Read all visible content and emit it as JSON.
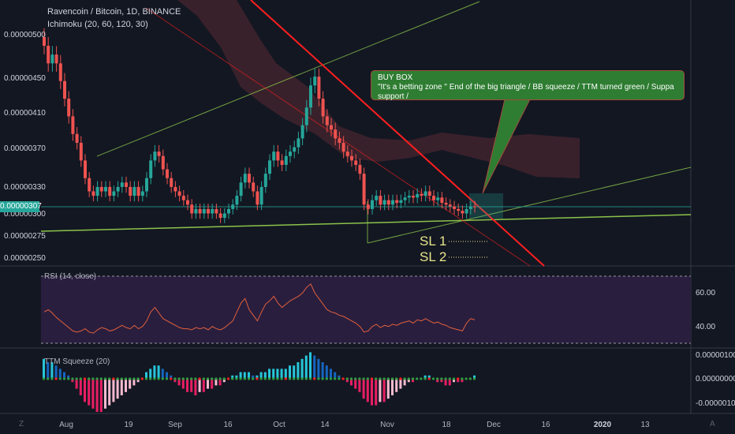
{
  "header": {
    "symbol": "Ravencoin / Bitcoin, 1D, BINANCE",
    "indicator": "Ichimoku (20, 60, 120, 30)"
  },
  "price_axis": [
    "0.00000500",
    "0.00000450",
    "0.00000410",
    "0.00000370",
    "0.00000330",
    "0.00000300",
    "0.00000275",
    "0.00000250"
  ],
  "last_price": "0.00000307",
  "rsi": {
    "label": "RSI (14, close)",
    "ticks": [
      "60.00",
      "40.00"
    ]
  },
  "ttm": {
    "label": "TTM Squeeze (20)",
    "ticks": [
      "0.00000100",
      "0.00000000",
      "-0.00000100"
    ]
  },
  "x_axis": [
    "Aug",
    "19",
    "Sep",
    "16",
    "Oct",
    "14",
    "Nov",
    "18",
    "Dec",
    "16",
    "2020",
    "13"
  ],
  "x_axis_bold": [
    false,
    false,
    false,
    false,
    false,
    false,
    false,
    false,
    false,
    false,
    true,
    false
  ],
  "callout": {
    "title": "BUY BOX",
    "text": "\"It's a betting zone \" End of the big triangle / BB squeeze / TTM turned green / Suppa support /"
  },
  "stop_losses": [
    "SL 1",
    "SL 2"
  ],
  "corner": {
    "left": "Z",
    "right": "A"
  },
  "colors": {
    "bg": "#131722",
    "up": "#26a69a",
    "down": "#ef5350",
    "rsi_fill": "#2a1e3f",
    "rsi_line": "#e0603a",
    "trend_green": "#8bc34a",
    "trend_red": "#ff1f1f",
    "cloud": "#5a2a33"
  },
  "chart_data": [
    {
      "type": "candlestick",
      "title": "Ravencoin / Bitcoin, 1D, BINANCE",
      "ylim": [
        2.45e-06,
        5.15e-06
      ],
      "x_range": [
        "2019-07-25",
        "2020-01-25"
      ],
      "closes": [
        4.9e-06,
        4.7e-06,
        4.8e-06,
        4.7e-06,
        4.5e-06,
        4.3e-06,
        4.1e-06,
        3.9e-06,
        3.8e-06,
        3.6e-06,
        3.4e-06,
        3.25e-06,
        3.2e-06,
        3.3e-06,
        3.25e-06,
        3.3e-06,
        3.2e-06,
        3.25e-06,
        3.3e-06,
        3.35e-06,
        3.3e-06,
        3.2e-06,
        3.3e-06,
        3.2e-06,
        3.25e-06,
        3.4e-06,
        3.6e-06,
        3.7e-06,
        3.65e-06,
        3.5e-06,
        3.4e-06,
        3.3e-06,
        3.25e-06,
        3.2e-06,
        3.15e-06,
        3.1e-06,
        3e-06,
        3.05e-06,
        3e-06,
        3.05e-06,
        3e-06,
        3.05e-06,
        3e-06,
        2.95e-06,
        3e-06,
        3.05e-06,
        3.1e-06,
        3.2e-06,
        3.35e-06,
        3.45e-06,
        3.35e-06,
        3.25e-06,
        3.1e-06,
        3.3e-06,
        3.45e-06,
        3.6e-06,
        3.7e-06,
        3.6e-06,
        3.55e-06,
        3.65e-06,
        3.7e-06,
        3.75e-06,
        3.85e-06,
        4e-06,
        4.2e-06,
        4.45e-06,
        4.55e-06,
        4.3e-06,
        4.1e-06,
        4e-06,
        3.95e-06,
        3.85e-06,
        3.8e-06,
        3.7e-06,
        3.65e-06,
        3.6e-06,
        3.55e-06,
        3.45e-06,
        3.1e-06,
        3.05e-06,
        3.15e-06,
        3.2e-06,
        3.1e-06,
        3.15e-06,
        3.1e-06,
        3.15e-06,
        3.12e-06,
        3.15e-06,
        3.18e-06,
        3.2e-06,
        3.18e-06,
        3.22e-06,
        3.2e-06,
        3.25e-06,
        3.2e-06,
        3.15e-06,
        3.18e-06,
        3.12e-06,
        3.1e-06,
        3.08e-06,
        3.05e-06,
        3.03e-06,
        3e-06,
        3.05e-06,
        3.08e-06,
        3.07e-06
      ],
      "last": 3.07e-06
    },
    {
      "type": "line",
      "title": "RSI (14, close)",
      "ylim": [
        20,
        80
      ],
      "values": [
        48,
        50,
        47,
        43,
        40,
        37,
        34,
        31,
        30,
        31,
        33,
        30,
        29,
        32,
        34,
        33,
        31,
        32,
        34,
        36,
        34,
        33,
        36,
        33,
        35,
        40,
        48,
        52,
        47,
        42,
        40,
        38,
        36,
        34,
        33,
        33,
        32,
        34,
        33,
        34,
        32,
        35,
        33,
        32,
        34,
        37,
        40,
        48,
        56,
        60,
        50,
        45,
        40,
        48,
        55,
        58,
        62,
        56,
        52,
        55,
        58,
        60,
        62,
        65,
        70,
        73,
        65,
        60,
        55,
        50,
        48,
        47,
        45,
        44,
        42,
        40,
        38,
        35,
        30,
        31,
        35,
        37,
        34,
        36,
        35,
        37,
        36,
        38,
        39,
        40,
        38,
        41,
        40,
        42,
        40,
        38,
        39,
        37,
        36,
        34,
        33,
        32,
        31,
        38,
        42,
        41
      ]
    },
    {
      "type": "bar",
      "title": "TTM Squeeze (20)",
      "ylim": [
        -1.2e-06,
        1e-06
      ],
      "values": [
        6e-07,
        5e-07,
        5e-07,
        4e-07,
        3e-07,
        2e-07,
        1e-07,
        -1e-07,
        -3e-07,
        -5e-07,
        -7e-07,
        -8e-07,
        -9e-07,
        -1e-06,
        -1e-06,
        -9e-07,
        -8e-07,
        -7e-07,
        -6e-07,
        -5e-07,
        -4e-07,
        -3e-07,
        -2e-07,
        -1e-07,
        0.0,
        2e-07,
        3e-07,
        4e-07,
        4e-07,
        3e-07,
        2e-07,
        1e-07,
        -1e-07,
        -2e-07,
        -3e-07,
        -4e-07,
        -4e-07,
        -5e-07,
        -4e-07,
        -4e-07,
        -3e-07,
        -3e-07,
        -2e-07,
        -2e-07,
        -1e-07,
        0.0,
        1e-07,
        1e-07,
        2e-07,
        2e-07,
        2e-07,
        1e-07,
        1e-07,
        2e-07,
        2e-07,
        3e-07,
        3e-07,
        3e-07,
        3e-07,
        3e-07,
        4e-07,
        4e-07,
        5e-07,
        6e-07,
        7e-07,
        8e-07,
        7e-07,
        6e-07,
        5e-07,
        4e-07,
        3e-07,
        2e-07,
        1e-07,
        0.0,
        -1e-07,
        -2e-07,
        -3e-07,
        -4e-07,
        -6e-07,
        -7e-07,
        -8e-07,
        -8e-07,
        -7e-07,
        -7e-07,
        -6e-07,
        -5e-07,
        -4e-07,
        -3e-07,
        -2e-07,
        -1e-07,
        -1e-07,
        0.0,
        0.0,
        1e-07,
        1e-07,
        0.0,
        -1e-07,
        -1e-07,
        -2e-07,
        -2e-07,
        -1e-07,
        -1e-07,
        -1e-07,
        0.0,
        0.0,
        1e-07
      ]
    }
  ]
}
